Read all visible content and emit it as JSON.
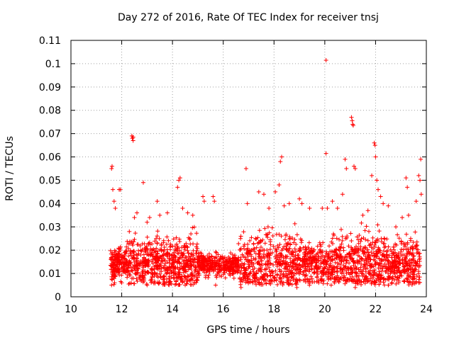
{
  "chart_data": {
    "type": "scatter",
    "title": "Day 272 of 2016, Rate Of TEC Index for receiver tnsj",
    "xlabel": "GPS time / hours",
    "ylabel": "ROTI / TECUs",
    "xlim": [
      10,
      24
    ],
    "ylim": [
      0,
      0.11
    ],
    "xticks": [
      "10",
      "12",
      "14",
      "16",
      "18",
      "20",
      "22",
      "24"
    ],
    "yticks": [
      "0",
      "0.01",
      "0.02",
      "0.03",
      "0.04",
      "0.05",
      "0.06",
      "0.07",
      "0.08",
      "0.09",
      "0.1",
      "0.11"
    ],
    "grid": true,
    "marker": "plus",
    "color": "#ff0000",
    "series": [
      {
        "name": "ROTI",
        "points": [
          [
            11.6,
            0.055
          ],
          [
            11.62,
            0.056
          ],
          [
            11.65,
            0.046
          ],
          [
            11.7,
            0.041
          ],
          [
            11.75,
            0.038
          ],
          [
            11.9,
            0.046
          ],
          [
            11.95,
            0.046
          ],
          [
            12.4,
            0.069
          ],
          [
            12.42,
            0.068
          ],
          [
            12.45,
            0.067
          ],
          [
            12.45,
            0.0685
          ],
          [
            12.85,
            0.049
          ],
          [
            12.3,
            0.028
          ],
          [
            12.5,
            0.034
          ],
          [
            12.6,
            0.036
          ],
          [
            13.0,
            0.032
          ],
          [
            13.1,
            0.034
          ],
          [
            13.4,
            0.041
          ],
          [
            13.5,
            0.035
          ],
          [
            13.8,
            0.036
          ],
          [
            14.2,
            0.047
          ],
          [
            14.25,
            0.05
          ],
          [
            14.3,
            0.051
          ],
          [
            14.4,
            0.038
          ],
          [
            14.6,
            0.036
          ],
          [
            14.8,
            0.035
          ],
          [
            15.2,
            0.043
          ],
          [
            15.25,
            0.041
          ],
          [
            15.6,
            0.043
          ],
          [
            15.65,
            0.041
          ],
          [
            16.9,
            0.055
          ],
          [
            16.95,
            0.04
          ],
          [
            17.4,
            0.045
          ],
          [
            17.6,
            0.044
          ],
          [
            17.8,
            0.038
          ],
          [
            18.05,
            0.045
          ],
          [
            18.2,
            0.048
          ],
          [
            18.25,
            0.058
          ],
          [
            18.3,
            0.06
          ],
          [
            18.4,
            0.039
          ],
          [
            18.6,
            0.04
          ],
          [
            19.0,
            0.042
          ],
          [
            19.1,
            0.04
          ],
          [
            19.4,
            0.038
          ],
          [
            19.9,
            0.038
          ],
          [
            20.05,
            0.1015
          ],
          [
            20.05,
            0.0615
          ],
          [
            20.1,
            0.038
          ],
          [
            20.3,
            0.041
          ],
          [
            20.5,
            0.038
          ],
          [
            20.7,
            0.044
          ],
          [
            20.8,
            0.059
          ],
          [
            20.85,
            0.055
          ],
          [
            21.05,
            0.077
          ],
          [
            21.08,
            0.0755
          ],
          [
            21.1,
            0.074
          ],
          [
            21.12,
            0.0735
          ],
          [
            21.15,
            0.056
          ],
          [
            21.2,
            0.055
          ],
          [
            21.5,
            0.035
          ],
          [
            21.7,
            0.037
          ],
          [
            21.85,
            0.052
          ],
          [
            21.95,
            0.066
          ],
          [
            21.98,
            0.065
          ],
          [
            22.0,
            0.06
          ],
          [
            22.05,
            0.05
          ],
          [
            22.1,
            0.046
          ],
          [
            22.2,
            0.043
          ],
          [
            22.3,
            0.04
          ],
          [
            22.5,
            0.039
          ],
          [
            22.8,
            0.03
          ],
          [
            23.05,
            0.034
          ],
          [
            23.2,
            0.051
          ],
          [
            23.25,
            0.047
          ],
          [
            23.3,
            0.035
          ],
          [
            23.6,
            0.041
          ],
          [
            23.7,
            0.052
          ],
          [
            23.75,
            0.05
          ],
          [
            23.78,
            0.059
          ],
          [
            23.8,
            0.044
          ],
          [
            11.6,
            0.005
          ],
          [
            12.0,
            0.006
          ],
          [
            13.0,
            0.005
          ],
          [
            14.5,
            0.005
          ],
          [
            15.7,
            0.005
          ],
          [
            16.7,
            0.004
          ],
          [
            18.9,
            0.004
          ],
          [
            21.2,
            0.004
          ],
          [
            22.5,
            0.005
          ],
          [
            23.7,
            0.006
          ]
        ]
      }
    ]
  }
}
